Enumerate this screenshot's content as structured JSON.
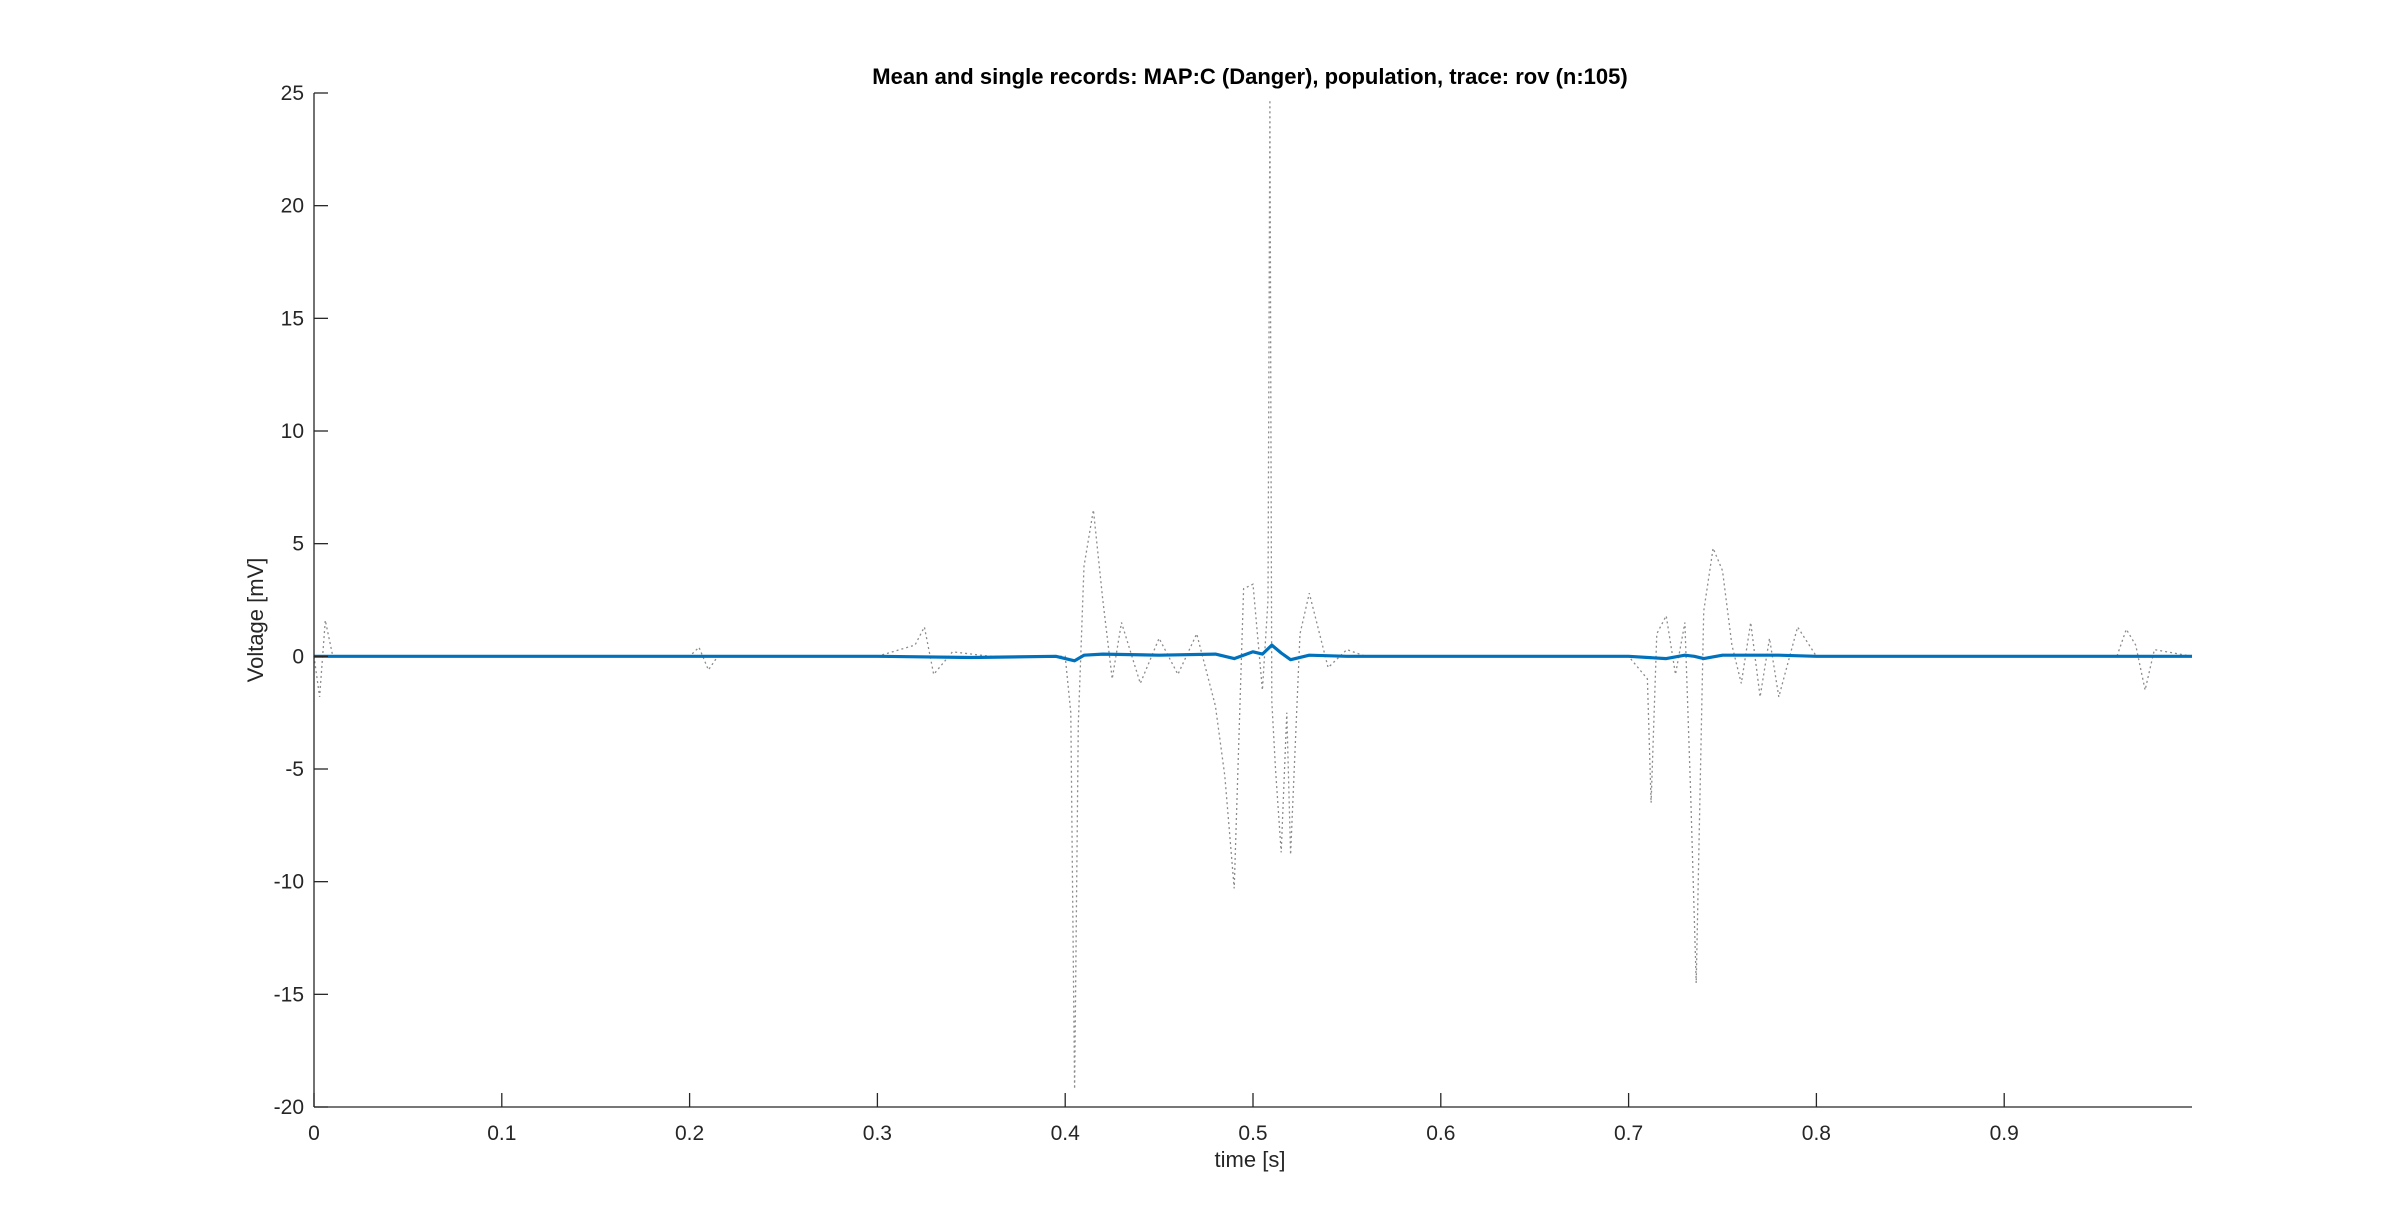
{
  "chart_data": {
    "type": "line",
    "title": "Mean and single records: MAP:C (Danger), population, trace: rov (n:105)",
    "xlabel": "time [s]",
    "ylabel": "Voltage [mV]",
    "xlim": [
      0,
      1
    ],
    "ylim": [
      -20,
      25
    ],
    "x_ticks": [
      0,
      0.1,
      0.2,
      0.3,
      0.4,
      0.5,
      0.6,
      0.7,
      0.8,
      0.9
    ],
    "x_tick_labels": [
      "0",
      "0.1",
      "0.2",
      "0.3",
      "0.4",
      "0.5",
      "0.6",
      "0.7",
      "0.8",
      "0.9"
    ],
    "y_ticks": [
      25,
      20,
      15,
      10,
      5,
      0,
      -5,
      -10,
      -15,
      -20
    ],
    "y_tick_labels": [
      "25",
      "20",
      "15",
      "10",
      "5",
      "0",
      "-5",
      "-10",
      "-15",
      "-20"
    ],
    "grid": false,
    "legend": "none",
    "colors": {
      "mean": "#0072BD",
      "single": "#8c8c8c",
      "axes": "#262626"
    },
    "series": [
      {
        "role": "mean",
        "style": "solid",
        "x": [
          0,
          0.1,
          0.2,
          0.3,
          0.35,
          0.395,
          0.405,
          0.41,
          0.42,
          0.45,
          0.48,
          0.49,
          0.5,
          0.505,
          0.51,
          0.515,
          0.52,
          0.53,
          0.55,
          0.6,
          0.7,
          0.72,
          0.73,
          0.735,
          0.74,
          0.75,
          0.78,
          0.8,
          0.9,
          1.0
        ],
        "y": [
          0,
          0,
          0,
          0,
          -0.05,
          0,
          -0.2,
          0.05,
          0.1,
          0.05,
          0.1,
          -0.1,
          0.2,
          0.1,
          0.5,
          0.15,
          -0.15,
          0.05,
          0,
          0,
          0,
          -0.1,
          0.05,
          0,
          -0.1,
          0.05,
          0.05,
          0,
          0,
          0
        ]
      },
      {
        "role": "single",
        "style": "dotted",
        "x": [
          0,
          0.003,
          0.006,
          0.01,
          0.2,
          0.205,
          0.21,
          0.215,
          0.3,
          0.32,
          0.325,
          0.33,
          0.34,
          0.36,
          0.4,
          0.403,
          0.405,
          0.407,
          0.41,
          0.415,
          0.42,
          0.425,
          0.43,
          0.44,
          0.45,
          0.46,
          0.47,
          0.48,
          0.485,
          0.49,
          0.495,
          0.5,
          0.505,
          0.508,
          0.509,
          0.51,
          0.512,
          0.515,
          0.518,
          0.52,
          0.525,
          0.53,
          0.54,
          0.55,
          0.56,
          0.6,
          0.7,
          0.71,
          0.712,
          0.715,
          0.72,
          0.725,
          0.73,
          0.733,
          0.736,
          0.74,
          0.745,
          0.75,
          0.755,
          0.76,
          0.765,
          0.77,
          0.775,
          0.78,
          0.79,
          0.8,
          0.9,
          0.96,
          0.965,
          0.97,
          0.975,
          0.98,
          1.0
        ],
        "y": [
          0,
          -1.8,
          1.6,
          0,
          0,
          0.4,
          -0.6,
          0,
          0,
          0.5,
          1.3,
          -0.8,
          0.2,
          0,
          0,
          -2.5,
          -19.2,
          -3,
          4,
          6.5,
          2.5,
          -1,
          1.5,
          -1.2,
          0.8,
          -0.8,
          1,
          -2.2,
          -5.3,
          -10.3,
          3,
          3.2,
          -1.5,
          2.5,
          24.7,
          -2,
          -5,
          -8.7,
          -2.5,
          -8.8,
          1,
          2.8,
          -0.5,
          0.3,
          0,
          0,
          0,
          -1,
          -6.5,
          1,
          1.8,
          -0.8,
          1.5,
          -6,
          -14.5,
          2,
          4.8,
          3.8,
          0.5,
          -1.2,
          1.5,
          -1.8,
          0.8,
          -1.8,
          1.3,
          0,
          0,
          0,
          1.2,
          0.5,
          -1.5,
          0.3,
          0
        ]
      }
    ]
  }
}
